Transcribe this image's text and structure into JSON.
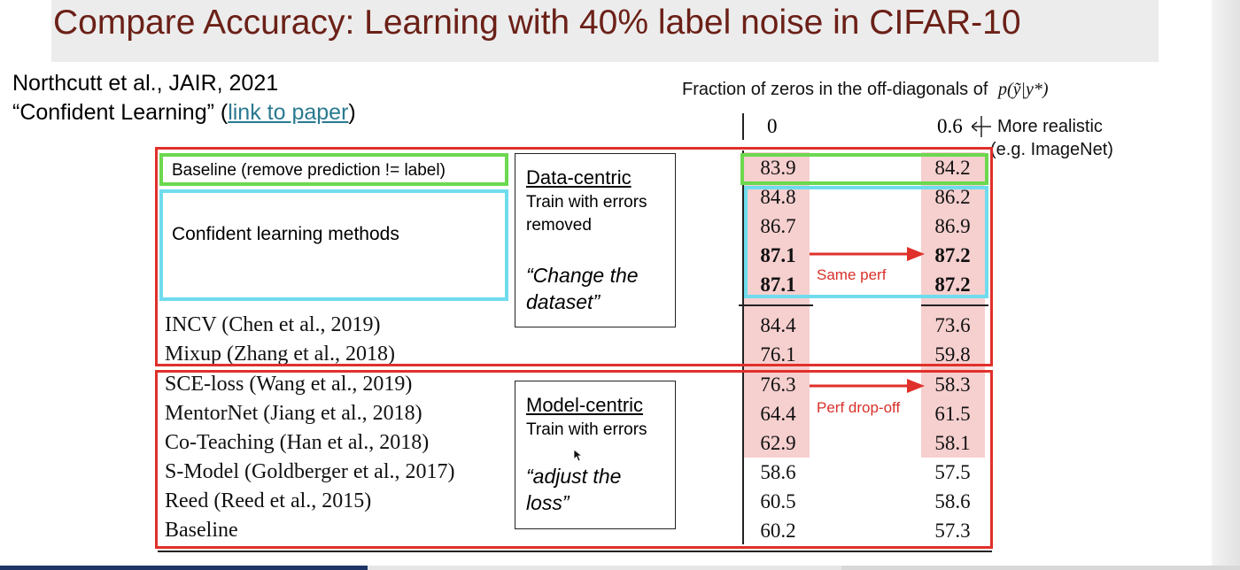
{
  "slide": {
    "title": "Compare Accuracy: Learning with 40% label noise in CIFAR-10",
    "citation_line1": "Northcutt et al., JAIR, 2021",
    "citation_prefix": "“Confident Learning” (",
    "citation_link": "link to paper",
    "citation_suffix": ")"
  },
  "table": {
    "header_caption": "Fraction of zeros in the off-diagonals of",
    "header_formula": "p(ỹ|y*)",
    "col0_label": "0",
    "col1_label": "0.6",
    "more_realistic_line1": "More realistic",
    "more_realistic_line2": "(e.g. ImageNet)",
    "baseline_remove_label": "Baseline (remove prediction != label)",
    "confident_methods_label": "Confident learning methods",
    "data_centric": {
      "title": "Data-centric",
      "line1": "Train with errors",
      "line2": "removed",
      "quote1": "“Change the",
      "quote2": "dataset”"
    },
    "model_centric": {
      "title": "Model-centric",
      "line1": "Train with errors",
      "quote1": "“adjust the",
      "quote2": "loss”"
    },
    "same_perf": "Same perf",
    "perf_dropoff": "Perf drop-off",
    "top_rows": [
      {
        "c0": "83.9",
        "c1": "84.2"
      },
      {
        "c0": "84.8",
        "c1": "86.2"
      },
      {
        "c0": "86.7",
        "c1": "86.9"
      },
      {
        "c0": "87.1",
        "c1": "87.2"
      },
      {
        "c0": "87.1",
        "c1": "87.2"
      }
    ],
    "rows": [
      {
        "label": "INCV (Chen et al., 2019)",
        "c0": "84.4",
        "c1": "73.6"
      },
      {
        "label": "Mixup (Zhang et al., 2018)",
        "c0": "76.1",
        "c1": "59.8"
      },
      {
        "label": "SCE-loss (Wang et al., 2019)",
        "c0": "76.3",
        "c1": "58.3"
      },
      {
        "label": "MentorNet (Jiang et al., 2018)",
        "c0": "64.4",
        "c1": "61.5"
      },
      {
        "label": "Co-Teaching (Han et al., 2018)",
        "c0": "62.9",
        "c1": "58.1"
      },
      {
        "label": "S-Model (Goldberger et al., 2017)",
        "c0": "58.6",
        "c1": "57.5"
      },
      {
        "label": "Reed (Reed et al., 2015)",
        "c0": "60.5",
        "c1": "58.6"
      },
      {
        "label": "Baseline",
        "c0": "60.2",
        "c1": "57.3"
      }
    ]
  },
  "colors": {
    "title": "#6b2017",
    "red_box": "#e0302a",
    "green_box": "#6bd84f",
    "cyan_box": "#6fdcee",
    "highlight": "#f6cfcf",
    "link": "#2a7a90"
  }
}
